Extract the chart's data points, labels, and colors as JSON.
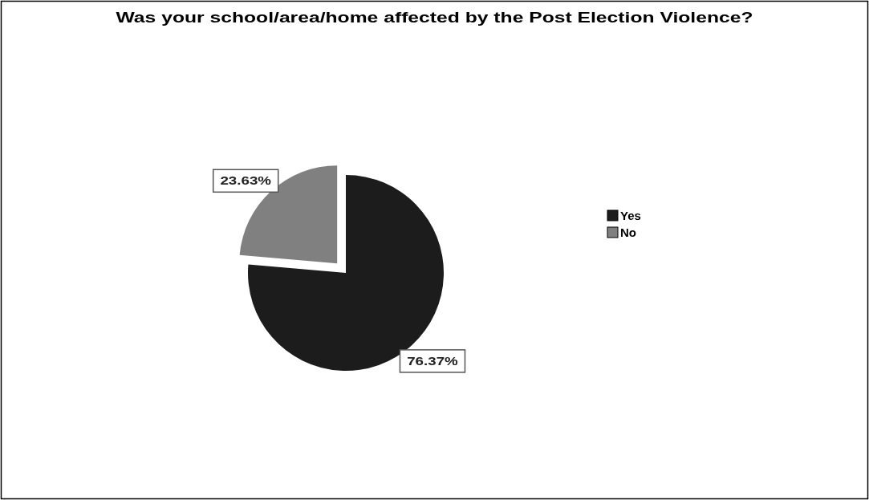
{
  "chart_data": {
    "type": "pie",
    "title": "Was your school/area/home affected by the Post Election Violence?",
    "categories": [
      "Yes",
      "No"
    ],
    "values": [
      76.37,
      23.63
    ],
    "colors": [
      "#1c1c1c",
      "#808080"
    ],
    "value_labels": [
      "76.37%",
      "23.63%"
    ],
    "legend": "right"
  }
}
